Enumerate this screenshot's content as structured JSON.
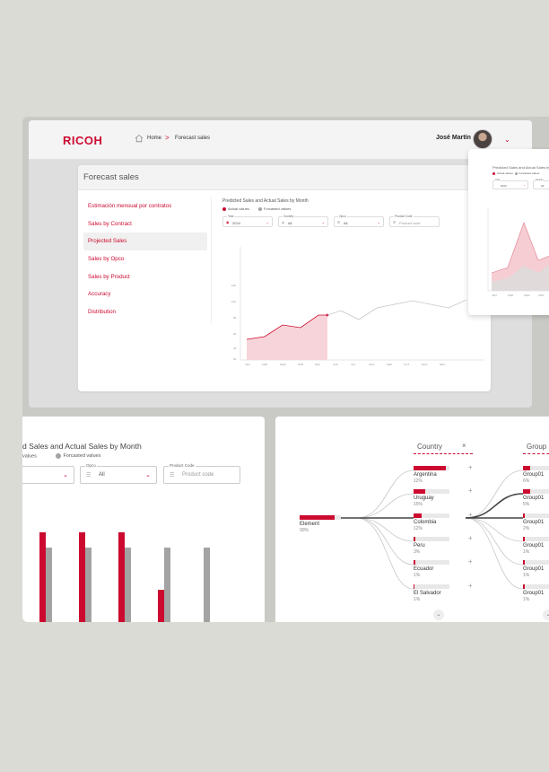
{
  "header": {
    "logo": "RICOH",
    "breadcrumb_home": "Home",
    "breadcrumb_sep": ">",
    "breadcrumb_current": "Forecast sales",
    "user_name": "José Martín",
    "user_chevron": "⌄"
  },
  "page": {
    "title": "Forecast sales"
  },
  "sidebar": {
    "items": [
      {
        "label": "Estimación mensual por contratos"
      },
      {
        "label": "Sales by Contract"
      },
      {
        "label": "Projected Sales"
      },
      {
        "label": "Sales by Opco"
      },
      {
        "label": "Sales by Product"
      },
      {
        "label": "Accuracy"
      },
      {
        "label": "Distribution"
      }
    ],
    "active_index": 2
  },
  "chart_main": {
    "title": "Predicted Sales and Actual Sales by Month",
    "legend": [
      "Actual values",
      "Forcasted values"
    ],
    "filters": [
      {
        "label": "Year",
        "value": "2024"
      },
      {
        "label": "Country",
        "value": "All"
      },
      {
        "label": "Opco",
        "value": "All"
      },
      {
        "label": "Product Code",
        "value": "Product code"
      }
    ]
  },
  "bl_panel": {
    "title": "d Sales and Actual Sales by Month",
    "legend_actual": "values",
    "legend_forecast": "Forcasted values",
    "filter_opco_label": "Opco",
    "filter_opco_value": "All",
    "filter_product_label": "Product Code",
    "filter_product_value": "Product code"
  },
  "tree": {
    "col1": "Country",
    "col1_close": "×",
    "col2": "Group",
    "root": {
      "name": "Element",
      "pct": "90%",
      "fill": 0.85
    },
    "countries": [
      {
        "name": "Argentina",
        "pct": "12%",
        "fill": 0.9
      },
      {
        "name": "Uruguay",
        "pct": "15%",
        "fill": 0.32
      },
      {
        "name": "Colombia",
        "pct": "12%",
        "fill": 0.22
      },
      {
        "name": "Peru",
        "pct": "3%",
        "fill": 0.06
      },
      {
        "name": "Ecuador",
        "pct": "1%",
        "fill": 0.04
      },
      {
        "name": "El Salvador",
        "pct": "1%",
        "fill": 0.03
      }
    ],
    "groups": [
      {
        "name": "Group01",
        "pct": "6%",
        "fill": 0.2
      },
      {
        "name": "Group01",
        "pct": "5%",
        "fill": 0.2
      },
      {
        "name": "Group01",
        "pct": "2%",
        "fill": 0.06
      },
      {
        "name": "Group01",
        "pct": "1%",
        "fill": 0.05
      },
      {
        "name": "Group01",
        "pct": "1%",
        "fill": 0.05
      },
      {
        "name": "Group01",
        "pct": "1%",
        "fill": 0.04
      }
    ]
  },
  "colors": {
    "accent": "#cc0a2f",
    "forecast": "#a3a3a3"
  }
}
